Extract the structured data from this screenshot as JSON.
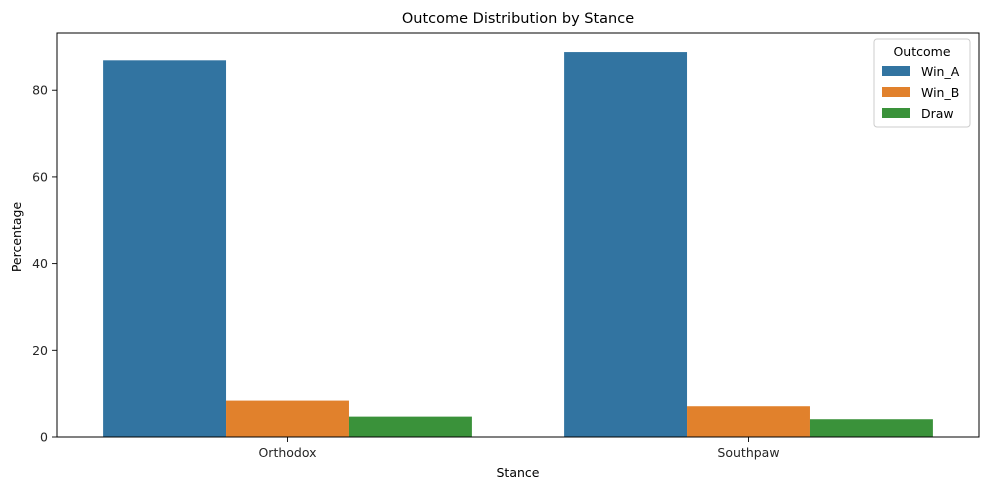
{
  "chart_data": {
    "type": "bar",
    "title": "Outcome Distribution by Stance",
    "xlabel": "Stance",
    "ylabel": "Percentage",
    "categories": [
      "Orthodox",
      "Southpaw"
    ],
    "series": [
      {
        "name": "Win_A",
        "color": "#3274a1",
        "values": [
          86.9,
          88.8
        ]
      },
      {
        "name": "Win_B",
        "color": "#e1812c",
        "values": [
          8.4,
          7.1
        ]
      },
      {
        "name": "Draw",
        "color": "#3a923a",
        "values": [
          4.7,
          4.1
        ]
      }
    ],
    "ylim": [
      0,
      93.2
    ],
    "yticks": [
      0,
      20,
      40,
      60,
      80
    ],
    "legend": {
      "title": "Outcome",
      "position": "top-right"
    },
    "grid": false
  }
}
